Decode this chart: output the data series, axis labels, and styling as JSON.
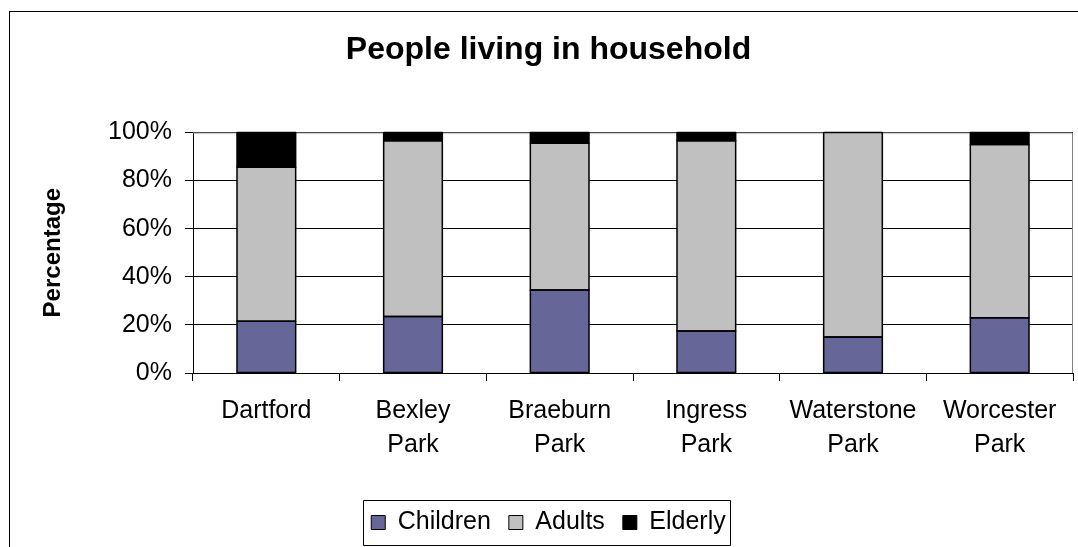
{
  "chart_data": {
    "type": "bar",
    "title": "People living in household",
    "ylabel": "Percentage",
    "categories": [
      "Dartford",
      "Bexley Park",
      "Braeburn Park",
      "Ingress Park",
      "Waterstone Park",
      "Worcester Park"
    ],
    "stacked": true,
    "series": [
      {
        "name": "Children",
        "color": "#666699",
        "values": [
          21.5,
          23.5,
          34.5,
          17.5,
          15,
          23
        ]
      },
      {
        "name": "Adults",
        "color": "#c0c0c0",
        "values": [
          64,
          73,
          61,
          79,
          85,
          72
        ]
      },
      {
        "name": "Elderly",
        "color": "#000000",
        "values": [
          14.5,
          3.5,
          4.5,
          3.5,
          0,
          5
        ]
      }
    ],
    "ylim": [
      0,
      100
    ],
    "yticks": [
      {
        "value": 0,
        "label": "0%"
      },
      {
        "value": 20,
        "label": "20%"
      },
      {
        "value": 40,
        "label": "40%"
      },
      {
        "value": 60,
        "label": "60%"
      },
      {
        "value": 80,
        "label": "80%"
      },
      {
        "value": 100,
        "label": "100%"
      }
    ],
    "grid": "y",
    "legend": "bottom"
  }
}
